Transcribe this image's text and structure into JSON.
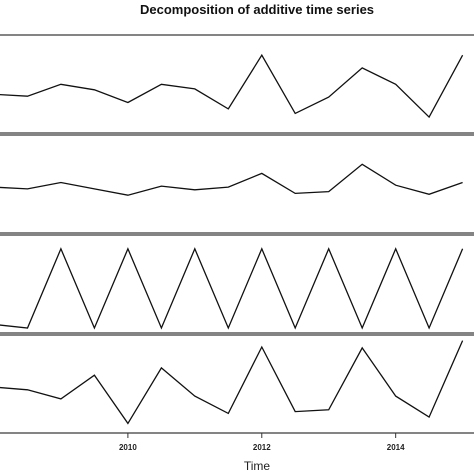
{
  "chart_data": {
    "type": "line",
    "title": "Decomposition of additive time series",
    "xlabel": "Time",
    "x_ticks": [
      "2010",
      "2012",
      "2014"
    ],
    "x_tick_values": [
      2010,
      2012,
      2014
    ],
    "xlim": [
      2008,
      2015.2
    ],
    "x": [
      2008,
      2008.5,
      2009,
      2009.5,
      2010,
      2010.5,
      2011,
      2011.5,
      2012,
      2012.5,
      2013,
      2013.5,
      2014,
      2014.5,
      2015
    ],
    "grid": false,
    "series": [
      {
        "ylim": [
          0,
          100
        ],
        "values": [
          37,
          35,
          48,
          42,
          28,
          48,
          43,
          21,
          80,
          16,
          34,
          66,
          48,
          12,
          80
        ]
      },
      {
        "ylim": [
          0,
          100
        ],
        "values": [
          45,
          43,
          50,
          43,
          36,
          46,
          42,
          45,
          60,
          38,
          40,
          70,
          47,
          37,
          50
        ]
      },
      {
        "ylim": [
          0,
          100
        ],
        "values": [
          4,
          0,
          87,
          0,
          87,
          0,
          87,
          0,
          87,
          0,
          87,
          0,
          87,
          0,
          87
        ]
      },
      {
        "ylim": [
          0,
          100
        ],
        "values": [
          45,
          42,
          32,
          58,
          5,
          66,
          35,
          16,
          89,
          18,
          20,
          88,
          35,
          12,
          96
        ]
      }
    ]
  }
}
